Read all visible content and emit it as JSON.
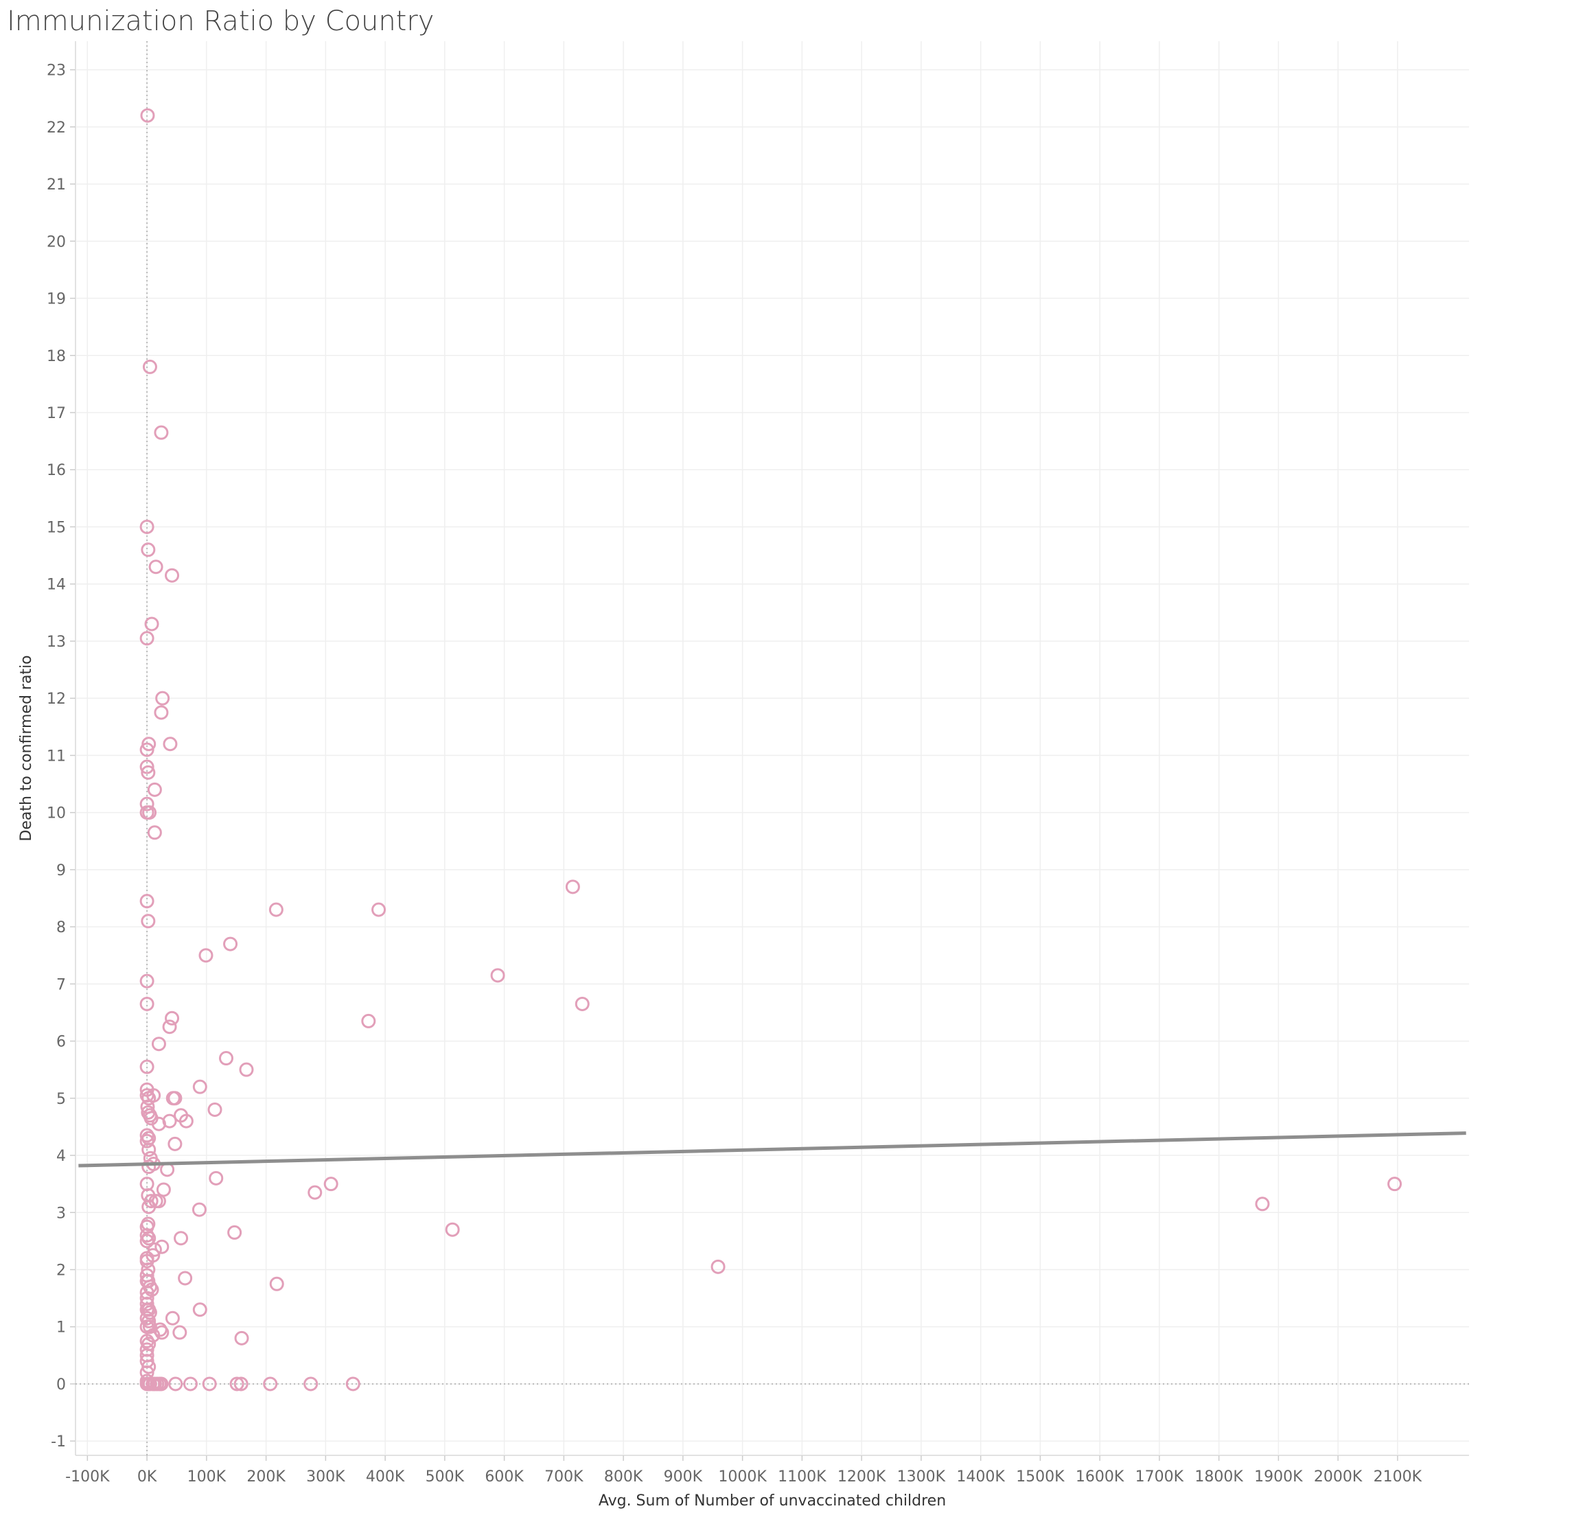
{
  "chart_data": {
    "type": "scatter",
    "title": "Immunization Ratio by Country",
    "xlabel": "Avg. Sum of Number of unvaccinated children",
    "ylabel": "Death to confirmed ratio",
    "xlim": [
      -120000,
      2220000
    ],
    "ylim": [
      -1.25,
      23.5
    ],
    "x_ticks": [
      -100000,
      0,
      100000,
      200000,
      300000,
      400000,
      500000,
      600000,
      700000,
      800000,
      900000,
      1000000,
      1100000,
      1200000,
      1300000,
      1400000,
      1500000,
      1600000,
      1700000,
      1800000,
      1900000,
      2000000,
      2100000
    ],
    "x_tick_labels": [
      "-100K",
      "0K",
      "100K",
      "200K",
      "300K",
      "400K",
      "500K",
      "600K",
      "700K",
      "800K",
      "900K",
      "1000K",
      "1100K",
      "1200K",
      "1300K",
      "1400K",
      "1500K",
      "1600K",
      "1700K",
      "1800K",
      "1900K",
      "2000K",
      "2100K"
    ],
    "y_ticks": [
      -1,
      0,
      1,
      2,
      3,
      4,
      5,
      6,
      7,
      8,
      9,
      10,
      11,
      12,
      13,
      14,
      15,
      16,
      17,
      18,
      19,
      20,
      21,
      22,
      23
    ],
    "grid": true,
    "zero_reference_lines": true,
    "marker": "hollow-circle",
    "marker_color": "#e29fb9",
    "trend_line_color": "#8e8e8e",
    "trend_line": {
      "type": "linear",
      "points": [
        [
          -115000,
          3.82
        ],
        [
          2215000,
          4.39
        ]
      ]
    },
    "points": [
      [
        1000,
        22.2
      ],
      [
        5000,
        17.8
      ],
      [
        24000,
        16.65
      ],
      [
        0,
        15.0
      ],
      [
        2000,
        14.6
      ],
      [
        15000,
        14.3
      ],
      [
        42000,
        14.15
      ],
      [
        8000,
        13.3
      ],
      [
        0,
        13.05
      ],
      [
        26000,
        12.0
      ],
      [
        24000,
        11.75
      ],
      [
        3000,
        11.2
      ],
      [
        39000,
        11.2
      ],
      [
        0,
        11.1
      ],
      [
        0,
        10.8
      ],
      [
        2000,
        10.7
      ],
      [
        13000,
        10.4
      ],
      [
        0,
        10.15
      ],
      [
        0,
        10.0
      ],
      [
        4000,
        10.0
      ],
      [
        13000,
        9.65
      ],
      [
        0,
        8.45
      ],
      [
        2000,
        8.1
      ],
      [
        0,
        7.05
      ],
      [
        0,
        6.65
      ],
      [
        42000,
        6.4
      ],
      [
        38000,
        6.25
      ],
      [
        20000,
        5.95
      ],
      [
        0,
        5.55
      ],
      [
        0,
        5.15
      ],
      [
        0,
        5.05
      ],
      [
        3000,
        5.0
      ],
      [
        11000,
        5.05
      ],
      [
        44000,
        5.0
      ],
      [
        47000,
        5.0
      ],
      [
        1000,
        4.85
      ],
      [
        2000,
        4.75
      ],
      [
        5000,
        4.7
      ],
      [
        7000,
        4.65
      ],
      [
        20000,
        4.55
      ],
      [
        38000,
        4.6
      ],
      [
        57000,
        4.7
      ],
      [
        66000,
        4.6
      ],
      [
        0,
        4.35
      ],
      [
        0,
        4.25
      ],
      [
        3000,
        4.3
      ],
      [
        3000,
        4.1
      ],
      [
        6000,
        3.95
      ],
      [
        11000,
        3.85
      ],
      [
        3000,
        3.8
      ],
      [
        34000,
        3.75
      ],
      [
        47000,
        4.2
      ],
      [
        0,
        3.5
      ],
      [
        28000,
        3.4
      ],
      [
        2000,
        3.3
      ],
      [
        3000,
        3.1
      ],
      [
        7000,
        3.2
      ],
      [
        15000,
        3.2
      ],
      [
        20000,
        3.2
      ],
      [
        0,
        2.75
      ],
      [
        2000,
        2.8
      ],
      [
        0,
        2.6
      ],
      [
        0,
        2.5
      ],
      [
        3000,
        2.55
      ],
      [
        0,
        2.2
      ],
      [
        0,
        2.15
      ],
      [
        2000,
        2.0
      ],
      [
        0,
        1.9
      ],
      [
        0,
        1.8
      ],
      [
        2000,
        1.8
      ],
      [
        5000,
        1.7
      ],
      [
        8000,
        1.65
      ],
      [
        0,
        1.6
      ],
      [
        0,
        1.5
      ],
      [
        0,
        1.4
      ],
      [
        3000,
        1.3
      ],
      [
        0,
        1.3
      ],
      [
        5000,
        1.25
      ],
      [
        0,
        1.15
      ],
      [
        3000,
        1.1
      ],
      [
        0,
        1.0
      ],
      [
        5000,
        1.0
      ],
      [
        0,
        0.75
      ],
      [
        3000,
        0.7
      ],
      [
        0,
        0.6
      ],
      [
        0,
        0.5
      ],
      [
        0,
        0.4
      ],
      [
        3000,
        0.3
      ],
      [
        0,
        0.2
      ],
      [
        0,
        0.05
      ],
      [
        0,
        0.0
      ],
      [
        2000,
        0.0
      ],
      [
        5000,
        0.0
      ],
      [
        10000,
        0.0
      ],
      [
        13000,
        0.0
      ],
      [
        17000,
        0.0
      ],
      [
        21000,
        0.0
      ],
      [
        24000,
        0.0
      ],
      [
        10000,
        2.25
      ],
      [
        13000,
        2.35
      ],
      [
        25000,
        2.4
      ],
      [
        10000,
        0.85
      ],
      [
        22000,
        0.95
      ],
      [
        25000,
        0.9
      ],
      [
        43000,
        1.15
      ],
      [
        55000,
        0.9
      ],
      [
        64000,
        1.85
      ],
      [
        57000,
        2.55
      ],
      [
        89000,
        1.3
      ],
      [
        88000,
        3.05
      ],
      [
        89000,
        5.2
      ],
      [
        99000,
        7.5
      ],
      [
        114000,
        4.8
      ],
      [
        116000,
        3.6
      ],
      [
        133000,
        5.7
      ],
      [
        140000,
        7.7
      ],
      [
        147000,
        2.65
      ],
      [
        159000,
        0.8
      ],
      [
        167000,
        5.5
      ],
      [
        217000,
        8.3
      ],
      [
        218000,
        1.75
      ],
      [
        282000,
        3.35
      ],
      [
        309000,
        3.5
      ],
      [
        372000,
        6.35
      ],
      [
        389000,
        8.3
      ],
      [
        513000,
        2.7
      ],
      [
        589000,
        7.15
      ],
      [
        715000,
        8.7
      ],
      [
        731000,
        6.65
      ],
      [
        959000,
        2.05
      ],
      [
        1873000,
        3.15
      ],
      [
        2095000,
        3.5
      ],
      [
        48000,
        0.0
      ],
      [
        73000,
        0.0
      ],
      [
        105000,
        0.0
      ],
      [
        151000,
        0.0
      ],
      [
        158000,
        0.0
      ],
      [
        207000,
        0.0
      ],
      [
        275000,
        0.0
      ],
      [
        346000,
        0.0
      ]
    ]
  }
}
